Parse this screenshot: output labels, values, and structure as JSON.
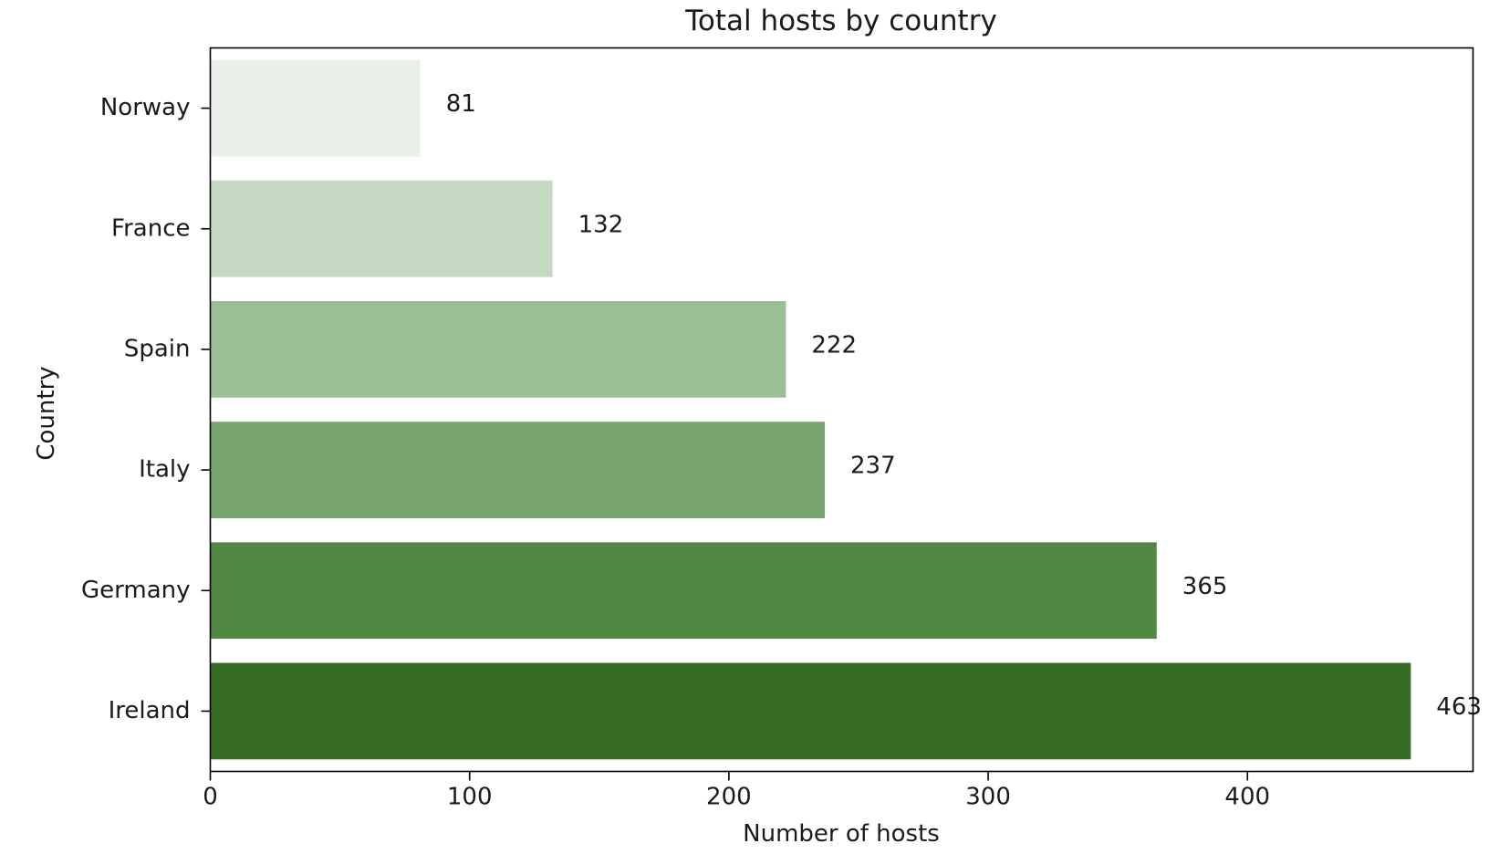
{
  "chart_data": {
    "type": "bar",
    "orientation": "horizontal",
    "title": "Total hosts by country",
    "xlabel": "Number of hosts",
    "ylabel": "Country",
    "categories": [
      "Norway",
      "France",
      "Spain",
      "Italy",
      "Germany",
      "Ireland"
    ],
    "values": [
      81,
      132,
      222,
      237,
      365,
      463
    ],
    "value_labels": [
      "81",
      "132",
      "222",
      "237",
      "365",
      "463"
    ],
    "bar_colors": [
      "#ebf1ea",
      "#c4d8c2",
      "#9cbe96",
      "#76a46c",
      "#508844",
      "#356b22"
    ],
    "xlim": [
      0,
      487
    ],
    "xticks": [
      0,
      100,
      200,
      300,
      400
    ],
    "xtick_labels": [
      "0",
      "100",
      "200",
      "300",
      "400"
    ],
    "grid": false,
    "legend": "none"
  }
}
